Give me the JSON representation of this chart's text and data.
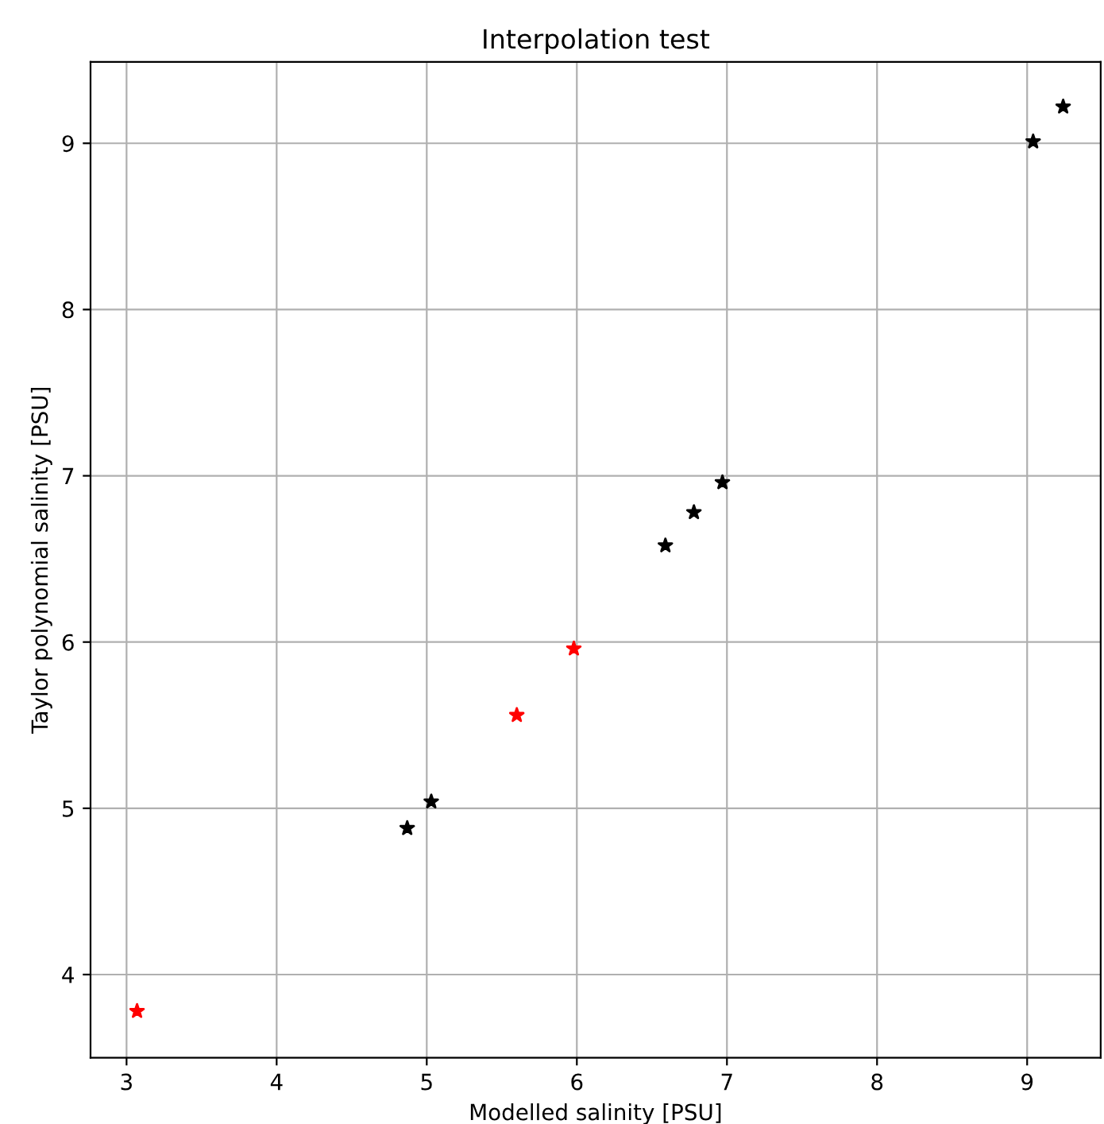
{
  "chart_data": {
    "type": "scatter",
    "title": "Interpolation test",
    "xlabel": "Modelled salinity [PSU]",
    "ylabel": "Taylor polynomial salinity [PSU]",
    "series": [
      {
        "color": "#000000",
        "x": [
          9.04,
          9.24,
          6.97,
          6.78,
          6.59,
          5.03,
          4.87
        ],
        "values": [
          9.01,
          9.22,
          6.96,
          6.78,
          6.58,
          5.04,
          4.88
        ]
      },
      {
        "color": "#ff0000",
        "x": [
          3.07,
          5.6,
          5.98
        ],
        "values": [
          3.78,
          5.56,
          5.96
        ]
      }
    ],
    "xlim": [
      2.76,
      9.49
    ],
    "ylim": [
      3.5,
      9.49
    ],
    "xticks": [
      3,
      4,
      5,
      6,
      7,
      8,
      9
    ],
    "yticks": [
      4,
      5,
      6,
      7,
      8,
      9
    ],
    "grid": true,
    "marker": "star"
  }
}
